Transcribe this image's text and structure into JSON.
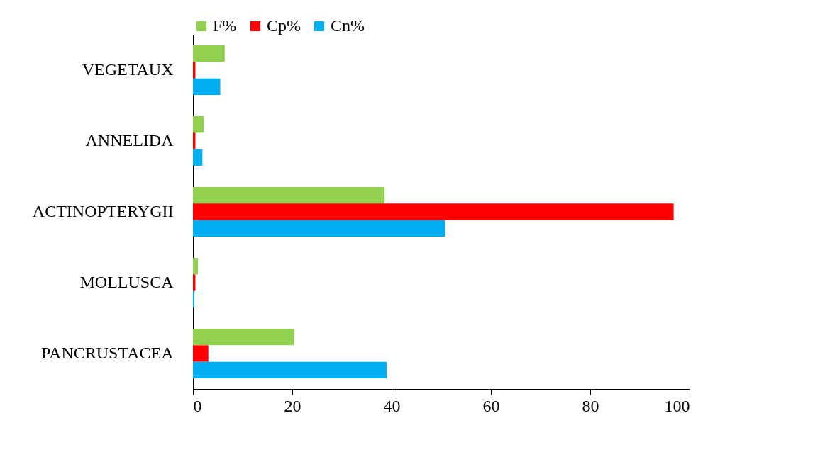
{
  "chart_data": {
    "type": "bar",
    "orientation": "horizontal",
    "categories": [
      "VEGETAUX",
      "ANNELIDA",
      "ACTINOPTERYGII",
      "MOLLUSCA",
      "PANCRUSTACEA"
    ],
    "series": [
      {
        "name": "F%",
        "color": "#92d050",
        "values": [
          6.4,
          2.2,
          38.6,
          1.0,
          20.4
        ]
      },
      {
        "name": "Cp%",
        "color": "#ff0000",
        "values": [
          0.5,
          0.5,
          96.8,
          0.5,
          3.1
        ]
      },
      {
        "name": "Cn%",
        "color": "#00b0f0",
        "values": [
          5.5,
          1.9,
          50.8,
          0.3,
          39.0
        ]
      }
    ],
    "xlim": [
      0,
      100
    ],
    "xticks": [
      0,
      20,
      40,
      60,
      80,
      100
    ],
    "grid": false,
    "legend": "top"
  }
}
